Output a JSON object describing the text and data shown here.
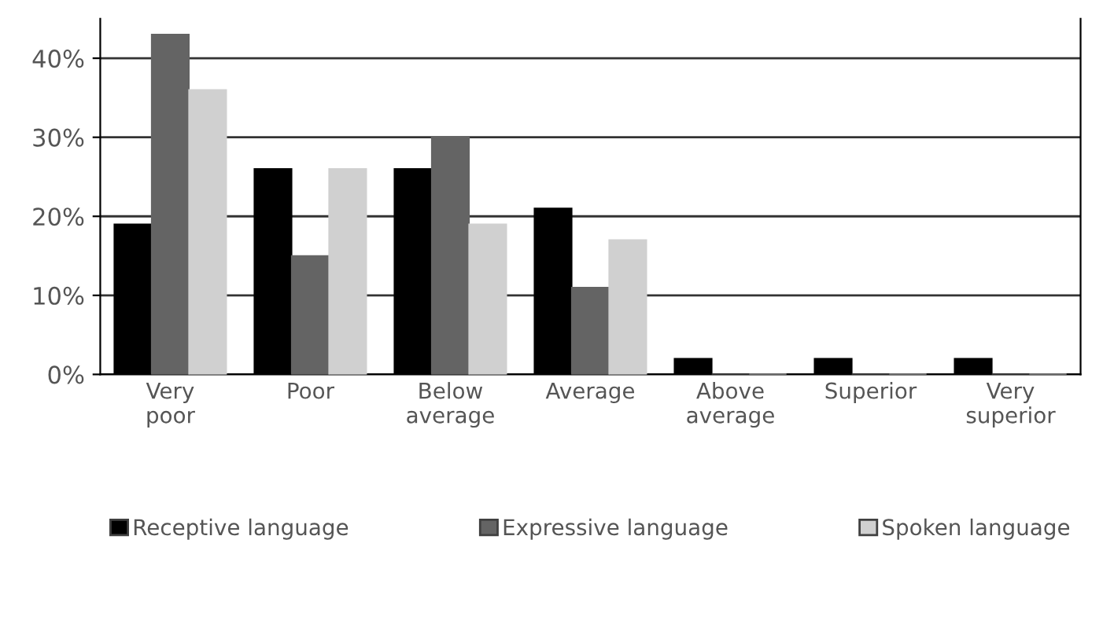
{
  "chart_data": {
    "type": "bar",
    "categories": [
      "Very\npoor",
      "Poor",
      "Below\naverage",
      "Average",
      "Above\naverage",
      "Superior",
      "Very\nsuperior"
    ],
    "series": [
      {
        "name": "Receptive language",
        "color": "#000000",
        "values": [
          19,
          26,
          26,
          21,
          2,
          2,
          2
        ]
      },
      {
        "name": "Expressive language",
        "color": "#646464",
        "values": [
          43,
          15,
          30,
          11,
          0,
          0,
          0
        ]
      },
      {
        "name": "Spoken language",
        "color": "#d0d0d0",
        "values": [
          36,
          26,
          19,
          17,
          0,
          0,
          0
        ]
      }
    ],
    "ylim": [
      0,
      45
    ],
    "yticks": [
      {
        "value": 0,
        "label": "0%"
      },
      {
        "value": 10,
        "label": "10%"
      },
      {
        "value": 20,
        "label": "20%"
      },
      {
        "value": 30,
        "label": "30%"
      },
      {
        "value": 40,
        "label": "40%"
      }
    ],
    "grid": "y",
    "legend": "bottom"
  }
}
